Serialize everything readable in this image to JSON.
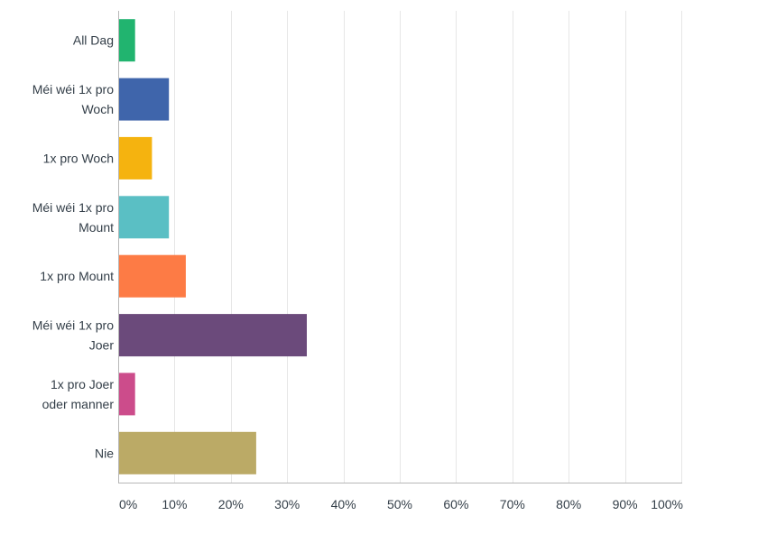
{
  "chart_data": {
    "type": "bar",
    "orientation": "horizontal",
    "categories": [
      [
        "All Dag"
      ],
      [
        "Méi wéi 1x pro",
        "Woch"
      ],
      [
        "1x pro Woch"
      ],
      [
        "Méi wéi 1x pro",
        "Mount"
      ],
      [
        "1x pro Mount"
      ],
      [
        "Méi wéi 1x pro",
        "Joer"
      ],
      [
        "1x pro Joer",
        "oder manner"
      ],
      [
        "Nie"
      ]
    ],
    "values": [
      3,
      9,
      6,
      9,
      12,
      33.5,
      3,
      24.5
    ],
    "colors": [
      "#21b46f",
      "#3f65ab",
      "#f5b30f",
      "#5abfc4",
      "#fd7b45",
      "#6b4a7b",
      "#cc4c8b",
      "#bbaa66"
    ],
    "xlim": [
      0,
      100
    ],
    "x_ticks": [
      0,
      10,
      20,
      30,
      40,
      50,
      60,
      70,
      80,
      90,
      100
    ],
    "x_tick_labels": [
      "0%",
      "10%",
      "20%",
      "30%",
      "40%",
      "50%",
      "60%",
      "70%",
      "80%",
      "90%",
      "100%"
    ],
    "grid": true
  }
}
